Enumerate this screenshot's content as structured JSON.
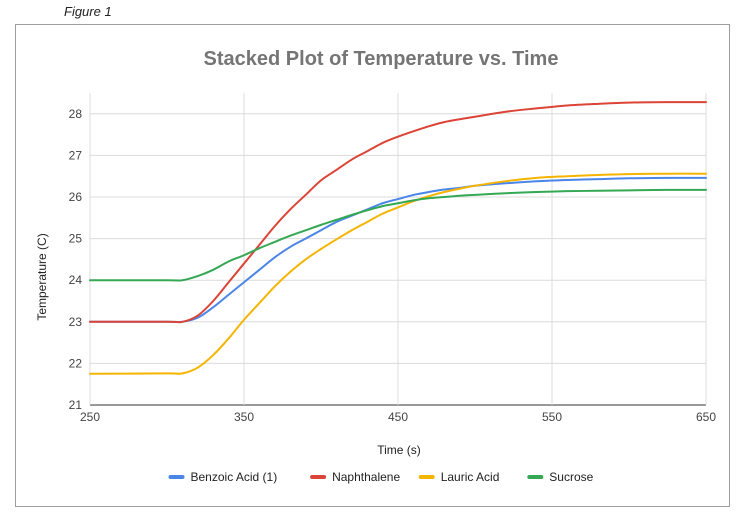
{
  "figure_label": "Figure 1",
  "chart_data": {
    "type": "line",
    "title": "Stacked Plot of Temperature vs. Time",
    "xlabel": "Time (s)",
    "ylabel": "Temperature (C)",
    "xlim": [
      250,
      650
    ],
    "ylim": [
      21,
      28.5
    ],
    "xticks": [
      250,
      350,
      450,
      550,
      650
    ],
    "yticks": [
      21,
      22,
      23,
      24,
      25,
      26,
      27,
      28
    ],
    "grid": true,
    "legend_position": "bottom",
    "series": [
      {
        "name": "Benzoic Acid (1)",
        "color": "#4a86e8",
        "points": [
          [
            250,
            23.0
          ],
          [
            300,
            23.0
          ],
          [
            310,
            23.0
          ],
          [
            320,
            23.1
          ],
          [
            330,
            23.35
          ],
          [
            340,
            23.65
          ],
          [
            350,
            23.95
          ],
          [
            360,
            24.25
          ],
          [
            370,
            24.55
          ],
          [
            380,
            24.8
          ],
          [
            390,
            25.0
          ],
          [
            400,
            25.2
          ],
          [
            410,
            25.4
          ],
          [
            420,
            25.55
          ],
          [
            430,
            25.7
          ],
          [
            440,
            25.85
          ],
          [
            450,
            25.95
          ],
          [
            460,
            26.05
          ],
          [
            470,
            26.12
          ],
          [
            480,
            26.18
          ],
          [
            490,
            26.22
          ],
          [
            500,
            26.27
          ],
          [
            520,
            26.33
          ],
          [
            540,
            26.38
          ],
          [
            560,
            26.41
          ],
          [
            580,
            26.43
          ],
          [
            600,
            26.45
          ],
          [
            625,
            26.46
          ],
          [
            650,
            26.46
          ]
        ]
      },
      {
        "name": "Naphthalene",
        "color": "#db4437",
        "points": [
          [
            250,
            23.0
          ],
          [
            300,
            23.0
          ],
          [
            310,
            23.0
          ],
          [
            320,
            23.15
          ],
          [
            330,
            23.5
          ],
          [
            340,
            23.95
          ],
          [
            350,
            24.4
          ],
          [
            360,
            24.85
          ],
          [
            370,
            25.3
          ],
          [
            380,
            25.7
          ],
          [
            390,
            26.05
          ],
          [
            400,
            26.4
          ],
          [
            410,
            26.65
          ],
          [
            420,
            26.9
          ],
          [
            430,
            27.1
          ],
          [
            440,
            27.3
          ],
          [
            450,
            27.45
          ],
          [
            460,
            27.58
          ],
          [
            470,
            27.7
          ],
          [
            480,
            27.8
          ],
          [
            490,
            27.87
          ],
          [
            500,
            27.93
          ],
          [
            520,
            28.05
          ],
          [
            540,
            28.13
          ],
          [
            560,
            28.2
          ],
          [
            580,
            28.24
          ],
          [
            600,
            28.27
          ],
          [
            625,
            28.28
          ],
          [
            650,
            28.28
          ]
        ]
      },
      {
        "name": "Lauric Acid",
        "color": "#f4b400",
        "points": [
          [
            250,
            21.75
          ],
          [
            300,
            21.76
          ],
          [
            310,
            21.76
          ],
          [
            320,
            21.9
          ],
          [
            330,
            22.2
          ],
          [
            340,
            22.6
          ],
          [
            350,
            23.05
          ],
          [
            360,
            23.45
          ],
          [
            370,
            23.85
          ],
          [
            380,
            24.2
          ],
          [
            390,
            24.5
          ],
          [
            400,
            24.75
          ],
          [
            410,
            24.98
          ],
          [
            420,
            25.2
          ],
          [
            430,
            25.4
          ],
          [
            440,
            25.6
          ],
          [
            450,
            25.75
          ],
          [
            460,
            25.9
          ],
          [
            470,
            26.02
          ],
          [
            480,
            26.12
          ],
          [
            490,
            26.2
          ],
          [
            500,
            26.27
          ],
          [
            520,
            26.38
          ],
          [
            540,
            26.46
          ],
          [
            560,
            26.5
          ],
          [
            580,
            26.53
          ],
          [
            600,
            26.55
          ],
          [
            625,
            26.56
          ],
          [
            650,
            26.56
          ]
        ]
      },
      {
        "name": "Sucrose",
        "color": "#34a853",
        "points": [
          [
            250,
            24.0
          ],
          [
            300,
            24.0
          ],
          [
            310,
            24.0
          ],
          [
            320,
            24.1
          ],
          [
            330,
            24.25
          ],
          [
            340,
            24.45
          ],
          [
            350,
            24.6
          ],
          [
            360,
            24.77
          ],
          [
            370,
            24.92
          ],
          [
            380,
            25.07
          ],
          [
            390,
            25.2
          ],
          [
            400,
            25.33
          ],
          [
            410,
            25.45
          ],
          [
            420,
            25.57
          ],
          [
            430,
            25.68
          ],
          [
            440,
            25.78
          ],
          [
            450,
            25.85
          ],
          [
            460,
            25.92
          ],
          [
            470,
            25.97
          ],
          [
            480,
            26.0
          ],
          [
            490,
            26.03
          ],
          [
            500,
            26.05
          ],
          [
            520,
            26.09
          ],
          [
            540,
            26.12
          ],
          [
            560,
            26.14
          ],
          [
            580,
            26.15
          ],
          [
            600,
            26.16
          ],
          [
            625,
            26.17
          ],
          [
            650,
            26.17
          ]
        ]
      }
    ]
  }
}
